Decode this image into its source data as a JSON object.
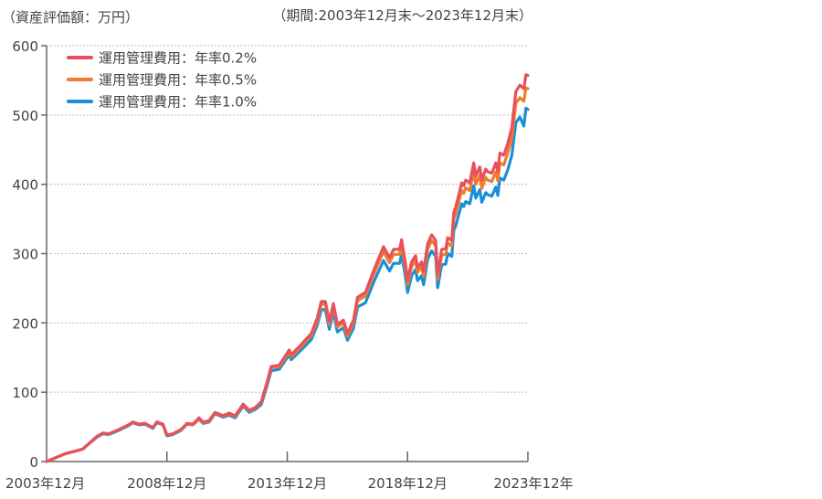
{
  "chart_data": {
    "type": "line",
    "unit_label": "（資産評価額：万円）",
    "period_label": "（期間:2003年12月末～2023年12月末）",
    "ylim": [
      0,
      600
    ],
    "yticks": [
      0,
      100,
      200,
      300,
      400,
      500,
      600
    ],
    "ytick_labels": [
      "0",
      "100",
      "200",
      "300",
      "400",
      "500",
      "600"
    ],
    "xlim": [
      "2003-12",
      "2023-12"
    ],
    "xticks": [
      "2003-12",
      "2008-12",
      "2013-12",
      "2018-12",
      "2023-12"
    ],
    "xtick_labels": [
      "2003年12月",
      "2008年12月",
      "2013年12月",
      "2018年12月",
      "2023年12年"
    ],
    "grid": true,
    "legend_position": "top-left",
    "x": [
      "2003-12",
      "2004-09",
      "2005-06",
      "2006-01",
      "2006-04",
      "2006-07",
      "2006-12",
      "2007-05",
      "2007-07",
      "2007-10",
      "2008-01",
      "2008-05",
      "2008-07",
      "2008-10",
      "2008-12",
      "2009-03",
      "2009-07",
      "2009-10",
      "2010-01",
      "2010-04",
      "2010-06",
      "2010-09",
      "2010-12",
      "2011-04",
      "2011-07",
      "2011-10",
      "2012-02",
      "2012-05",
      "2012-08",
      "2012-11",
      "2013-02",
      "2013-04",
      "2013-08",
      "2014-01",
      "2014-02",
      "2014-07",
      "2014-12",
      "2015-03",
      "2015-05",
      "2015-07",
      "2015-09",
      "2015-11",
      "2016-01",
      "2016-04",
      "2016-06",
      "2016-09",
      "2016-11",
      "2017-03",
      "2017-07",
      "2017-12",
      "2018-03",
      "2018-05",
      "2018-08",
      "2018-09",
      "2018-11",
      "2018-12",
      "2019-02",
      "2019-04",
      "2019-05",
      "2019-07",
      "2019-08",
      "2019-10",
      "2019-12",
      "2020-02",
      "2020-03",
      "2020-05",
      "2020-07",
      "2020-08",
      "2020-10",
      "2020-11",
      "2020-12",
      "2021-03",
      "2021-04",
      "2021-05",
      "2021-07",
      "2021-09",
      "2021-10",
      "2021-12",
      "2022-01",
      "2022-03",
      "2022-04",
      "2022-06",
      "2022-08",
      "2022-09",
      "2022-10",
      "2022-12",
      "2023-02",
      "2023-04",
      "2023-06",
      "2023-08",
      "2023-10",
      "2023-11",
      "2023-12"
    ],
    "series": [
      {
        "name": "運用管理費用：年率0.2%",
        "color": "#e8505b",
        "values": [
          0,
          11,
          18,
          36,
          41,
          40,
          46,
          53,
          57,
          54,
          55,
          49,
          57,
          54,
          38,
          40,
          46,
          55,
          54,
          63,
          57,
          59,
          71,
          66,
          70,
          66,
          83,
          74,
          78,
          86,
          115,
          137,
          139,
          161,
          154,
          169,
          185,
          207,
          231,
          231,
          202,
          228,
          198,
          204,
          185,
          204,
          237,
          244,
          275,
          310,
          294,
          306,
          306,
          320,
          284,
          261,
          288,
          297,
          280,
          288,
          274,
          314,
          327,
          319,
          270,
          306,
          307,
          323,
          319,
          359,
          367,
          402,
          398,
          406,
          402,
          431,
          412,
          425,
          406,
          422,
          418,
          416,
          431,
          418,
          445,
          442,
          459,
          482,
          534,
          543,
          538,
          558,
          557
        ]
      },
      {
        "name": "運用管理費用：年率0.5%",
        "color": "#ef7d2e",
        "values": [
          0,
          11,
          18,
          36,
          41,
          40,
          46,
          53,
          57,
          54,
          55,
          49,
          57,
          54,
          38,
          40,
          46,
          54,
          53,
          62,
          56,
          58,
          70,
          65,
          69,
          65,
          82,
          73,
          77,
          85,
          113,
          135,
          137,
          158,
          151,
          166,
          182,
          203,
          227,
          227,
          198,
          224,
          194,
          200,
          181,
          200,
          232,
          239,
          269,
          303,
          287,
          299,
          299,
          312,
          277,
          255,
          281,
          290,
          273,
          281,
          267,
          306,
          319,
          311,
          263,
          298,
          299,
          315,
          311,
          350,
          357,
          391,
          387,
          395,
          391,
          419,
          400,
          413,
          394,
          410,
          406,
          404,
          418,
          405,
          431,
          428,
          445,
          467,
          517,
          525,
          520,
          539,
          538
        ]
      },
      {
        "name": "運用管理費用：年率1.0%",
        "color": "#1a8fd6",
        "values": [
          0,
          11,
          18,
          35,
          40,
          39,
          45,
          52,
          56,
          53,
          54,
          48,
          56,
          53,
          37,
          39,
          45,
          54,
          53,
          61,
          55,
          57,
          69,
          64,
          67,
          63,
          80,
          71,
          75,
          82,
          110,
          131,
          133,
          154,
          147,
          161,
          176,
          197,
          219,
          219,
          191,
          216,
          187,
          193,
          175,
          192,
          223,
          229,
          258,
          290,
          275,
          286,
          286,
          299,
          265,
          244,
          268,
          277,
          261,
          268,
          255,
          292,
          304,
          296,
          251,
          284,
          285,
          300,
          296,
          333,
          340,
          372,
          368,
          375,
          372,
          398,
          380,
          392,
          374,
          388,
          385,
          383,
          396,
          384,
          409,
          406,
          421,
          442,
          489,
          497,
          484,
          510,
          508
        ]
      }
    ]
  }
}
